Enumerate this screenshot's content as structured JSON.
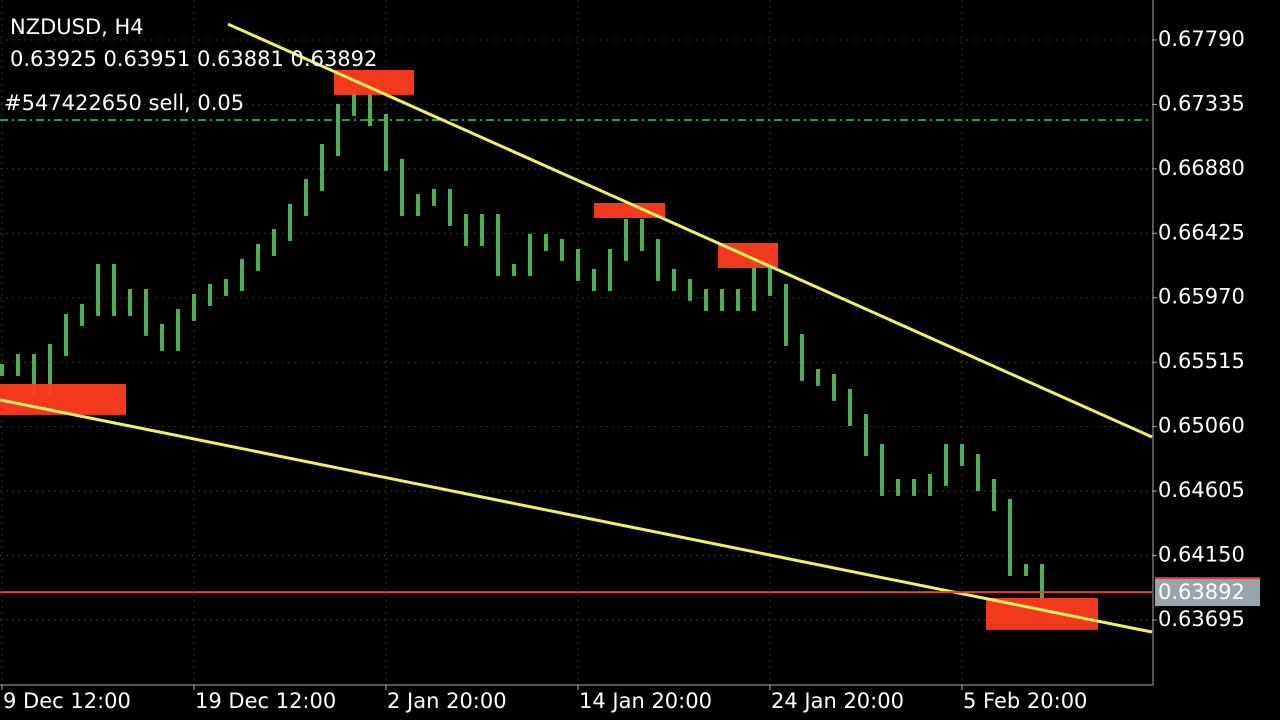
{
  "chart_data": {
    "type": "price-bars",
    "title": "NZDUSD, H4",
    "quote_text": "0.63925 0.63951 0.63881 0.63892",
    "order_text": "#547422650 sell, 0.05",
    "order_price": 0.67225,
    "last_price": 0.63892,
    "color": "#4caf50",
    "values": [
      0.6546,
      0.65531,
      0.65319,
      0.65601,
      0.65813,
      0.65884,
      0.66166,
      0.65884,
      0.6599,
      0.65743,
      0.65637,
      0.65849,
      0.65954,
      0.66025,
      0.6606,
      0.66202,
      0.66307,
      0.66413,
      0.6659,
      0.66766,
      0.67013,
      0.67296,
      0.67402,
      0.67225,
      0.66908,
      0.6659,
      0.6666,
      0.66696,
      0.66519,
      0.66378,
      0.66519,
      0.66166,
      0.66166,
      0.66378,
      0.66342,
      0.66272,
      0.66131,
      0.6606,
      0.66272,
      0.66484,
      0.66342,
      0.66131,
      0.6606,
      0.6599,
      0.65919,
      0.6599,
      0.65919,
      0.66202,
      0.66025,
      0.65672,
      0.65425,
      0.6539,
      0.65284,
      0.65107,
      0.64895,
      0.64613,
      0.64648,
      0.64613,
      0.64684,
      0.64895,
      0.64825,
      0.64648,
      0.64507,
      0.64048,
      0.64048,
      0.63892
    ],
    "xlim": [
      -0.125,
      71.875
    ],
    "xticks": [
      {
        "value": 0,
        "label": "9 Dec 12:00"
      },
      {
        "value": 12,
        "label": "19 Dec 12:00"
      },
      {
        "value": 24,
        "label": "2 Jan 20:00"
      },
      {
        "value": 36,
        "label": "14 Jan 20:00"
      },
      {
        "value": 48,
        "label": "24 Jan 20:00"
      },
      {
        "value": 60,
        "label": "5 Feb 20:00"
      }
    ],
    "ylim": [
      0.63236,
      0.68072
    ],
    "yticks": [
      {
        "value": 0.6779,
        "label": "0.67790"
      },
      0.67335,
      {
        "value": 0.6688,
        "label": "0.66880"
      },
      0.66425,
      {
        "value": 0.6597,
        "label": "0.65970"
      },
      0.65515,
      {
        "value": 0.6506,
        "label": "0.65060"
      },
      0.64605,
      {
        "value": 0.6415,
        "label": "0.64150"
      },
      0.63695
    ],
    "grid": true,
    "trendlines": [
      {
        "color": "#f0f060",
        "points": [
          [
            14.125,
            0.67902
          ],
          [
            71.875,
            0.64987
          ]
        ]
      },
      {
        "color": "#f0f060",
        "points": [
          [
            -0.125,
            0.65249
          ],
          [
            71.875,
            0.6361
          ]
        ]
      }
    ],
    "zones": [
      {
        "color": "#ff3b1f",
        "x": [
          -0.125,
          7.75
        ],
        "y": [
          0.65143,
          0.65361
        ]
      },
      {
        "color": "#ff3b1f",
        "x": [
          20.75,
          25.75
        ],
        "y": [
          0.67402,
          0.67578
        ]
      },
      {
        "color": "#ff3b1f",
        "x": [
          37,
          41.4375
        ],
        "y": [
          0.66533,
          0.66639
        ]
      },
      {
        "color": "#ff3b1f",
        "x": [
          44.75,
          48.5
        ],
        "y": [
          0.6618,
          0.66357
        ]
      },
      {
        "color": "#ff3b1f",
        "x": [
          61.5,
          68.5
        ],
        "y": [
          0.63625,
          0.63851
        ]
      }
    ]
  }
}
